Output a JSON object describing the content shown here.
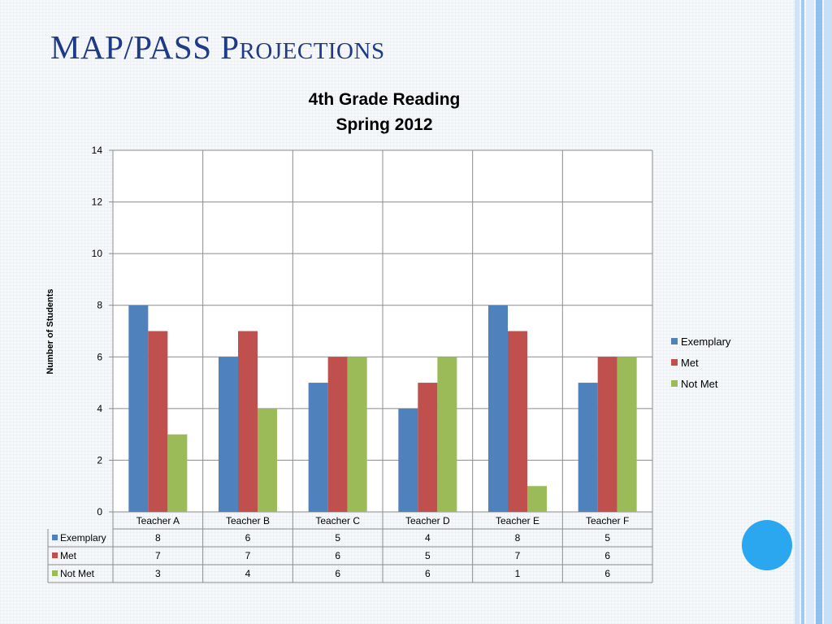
{
  "slide": {
    "title": "MAP/PASS Projections"
  },
  "colors": {
    "title": "#1f3a86",
    "Exemplary": "#4f81bd",
    "Met": "#c0504d",
    "Not Met": "#9bbb59",
    "accent_circle": "#2aa7ef"
  },
  "chart_data": {
    "type": "bar",
    "title": [
      "4th Grade Reading",
      "Spring 2012"
    ],
    "xlabel": "",
    "ylabel": "Number of Students",
    "ylim": [
      0,
      14
    ],
    "yticks": [
      0,
      2,
      4,
      6,
      8,
      10,
      12,
      14
    ],
    "categories": [
      "Teacher A",
      "Teacher B",
      "Teacher C",
      "Teacher D",
      "Teacher E",
      "Teacher F"
    ],
    "series": [
      {
        "name": "Exemplary",
        "values": [
          8,
          6,
          5,
          4,
          8,
          5
        ]
      },
      {
        "name": "Met",
        "values": [
          7,
          7,
          6,
          5,
          7,
          6
        ]
      },
      {
        "name": "Not Met",
        "values": [
          3,
          4,
          6,
          6,
          1,
          6
        ]
      }
    ],
    "grid": true,
    "legend_position": "right",
    "data_table": true
  }
}
